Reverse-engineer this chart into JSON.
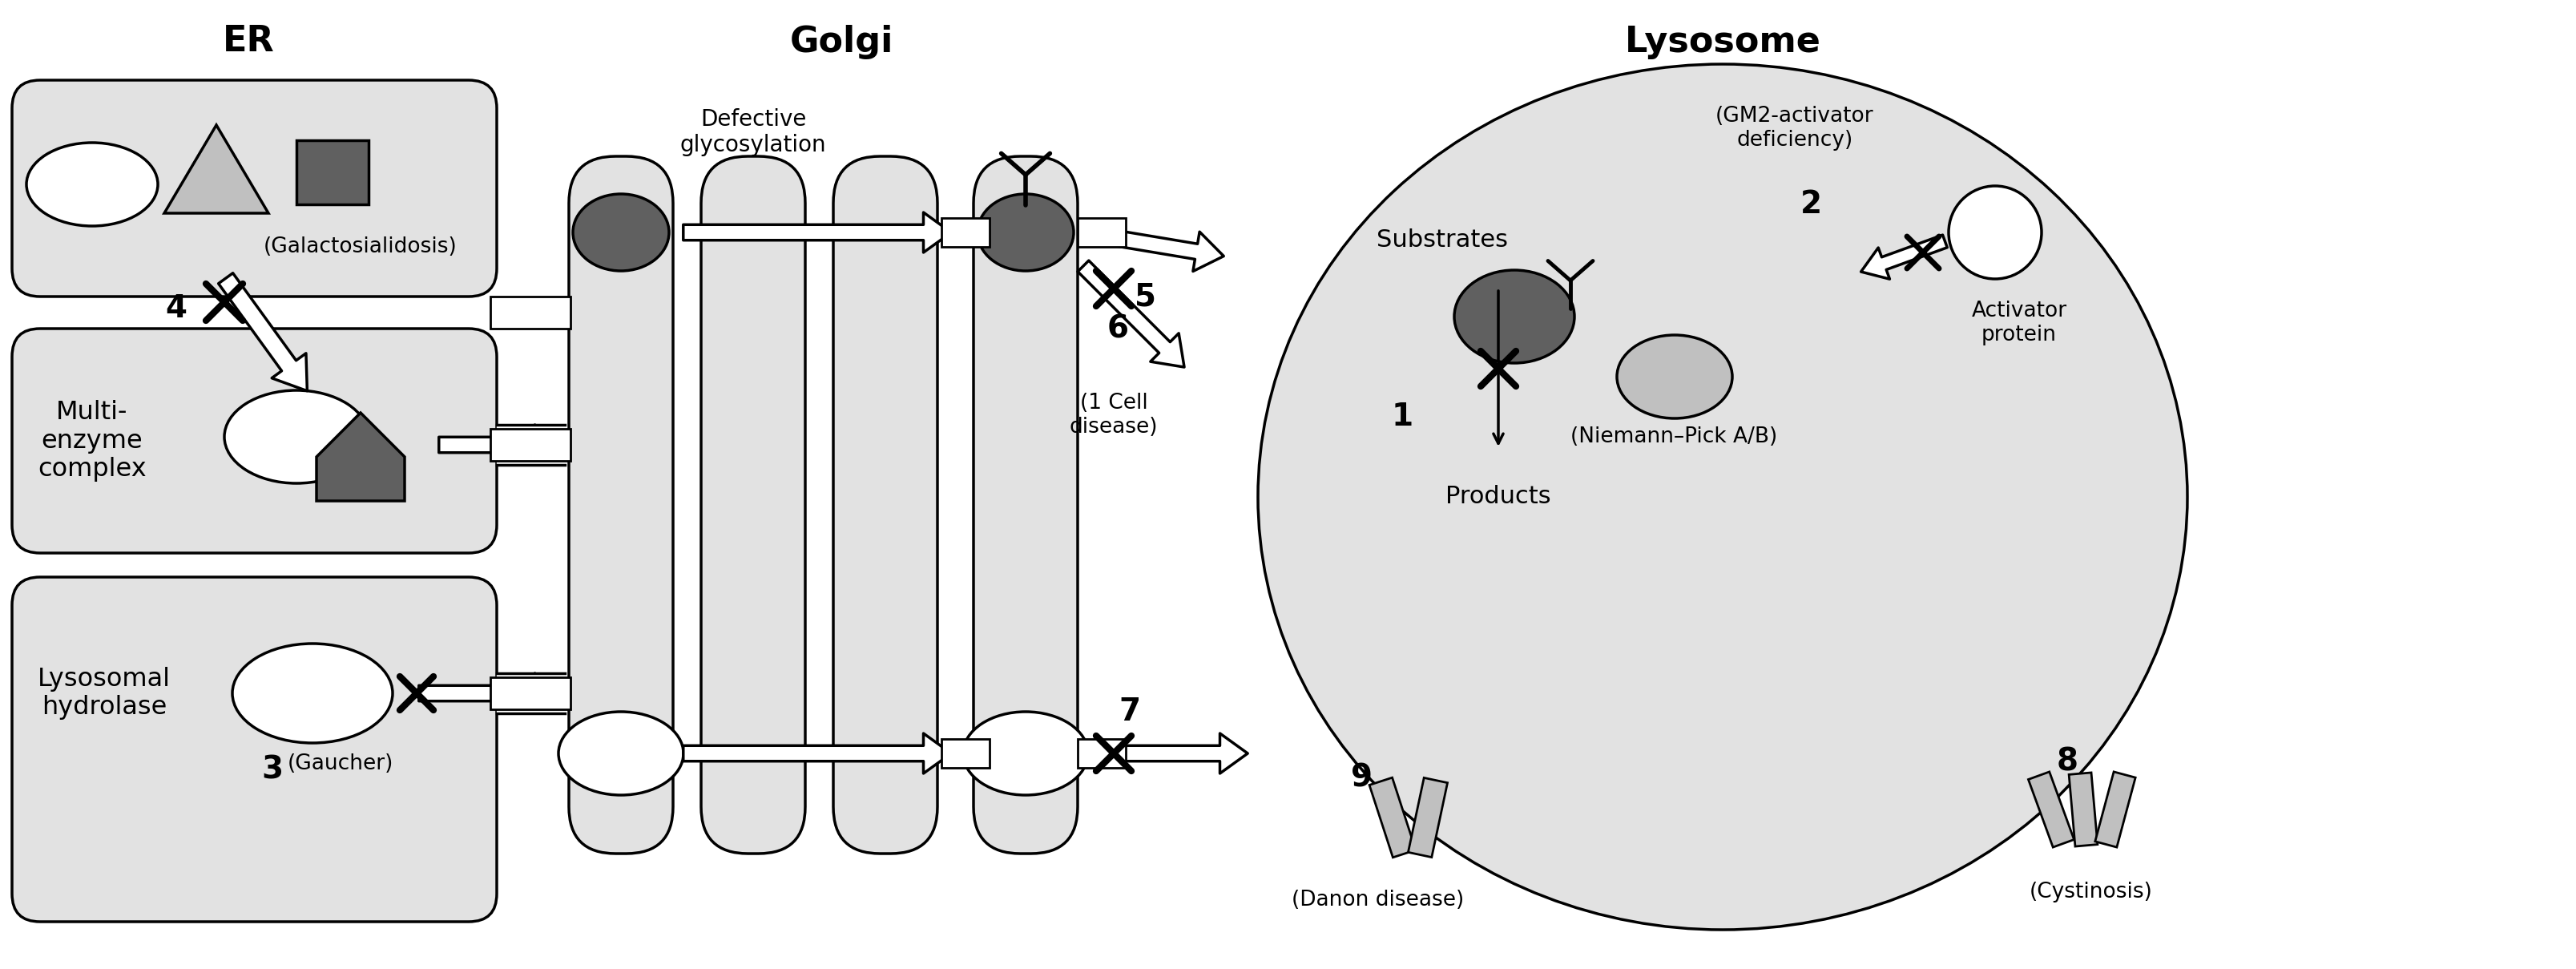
{
  "bg_color": "#ffffff",
  "cell_bg": "#e2e2e2",
  "golgi_bg": "#e2e2e2",
  "labels": {
    "ER": "ER",
    "Golgi": "Golgi",
    "Lysosome": "Lysosome",
    "defective_glycosylation": "Defective\nglycosylation",
    "galactosialidosis": "(Galactosialidosis)",
    "multienzyme": "Multi-\nenzyme\ncomplex",
    "lysosomal_hydrolase": "Lysosomal\nhydrolase",
    "gaucher": "(Gaucher)",
    "substrates": "Substrates",
    "products": "Products",
    "gm2": "(GM2-activator\ndeficiency)",
    "activator_protein": "Activator\nprotein",
    "niemann_pick": "(Niemann–Pick A/B)",
    "1_cell": "(1 Cell\ndisease)",
    "danon": "(Danon disease)",
    "cystinosis": "(Cystinosis)"
  },
  "colors": {
    "white": "#ffffff",
    "light_gray": "#c0c0c0",
    "mid_gray": "#808080",
    "dark_gray": "#606060",
    "darker_gray": "#484848",
    "black": "#000000",
    "cell_fill": "#e2e2e2"
  }
}
